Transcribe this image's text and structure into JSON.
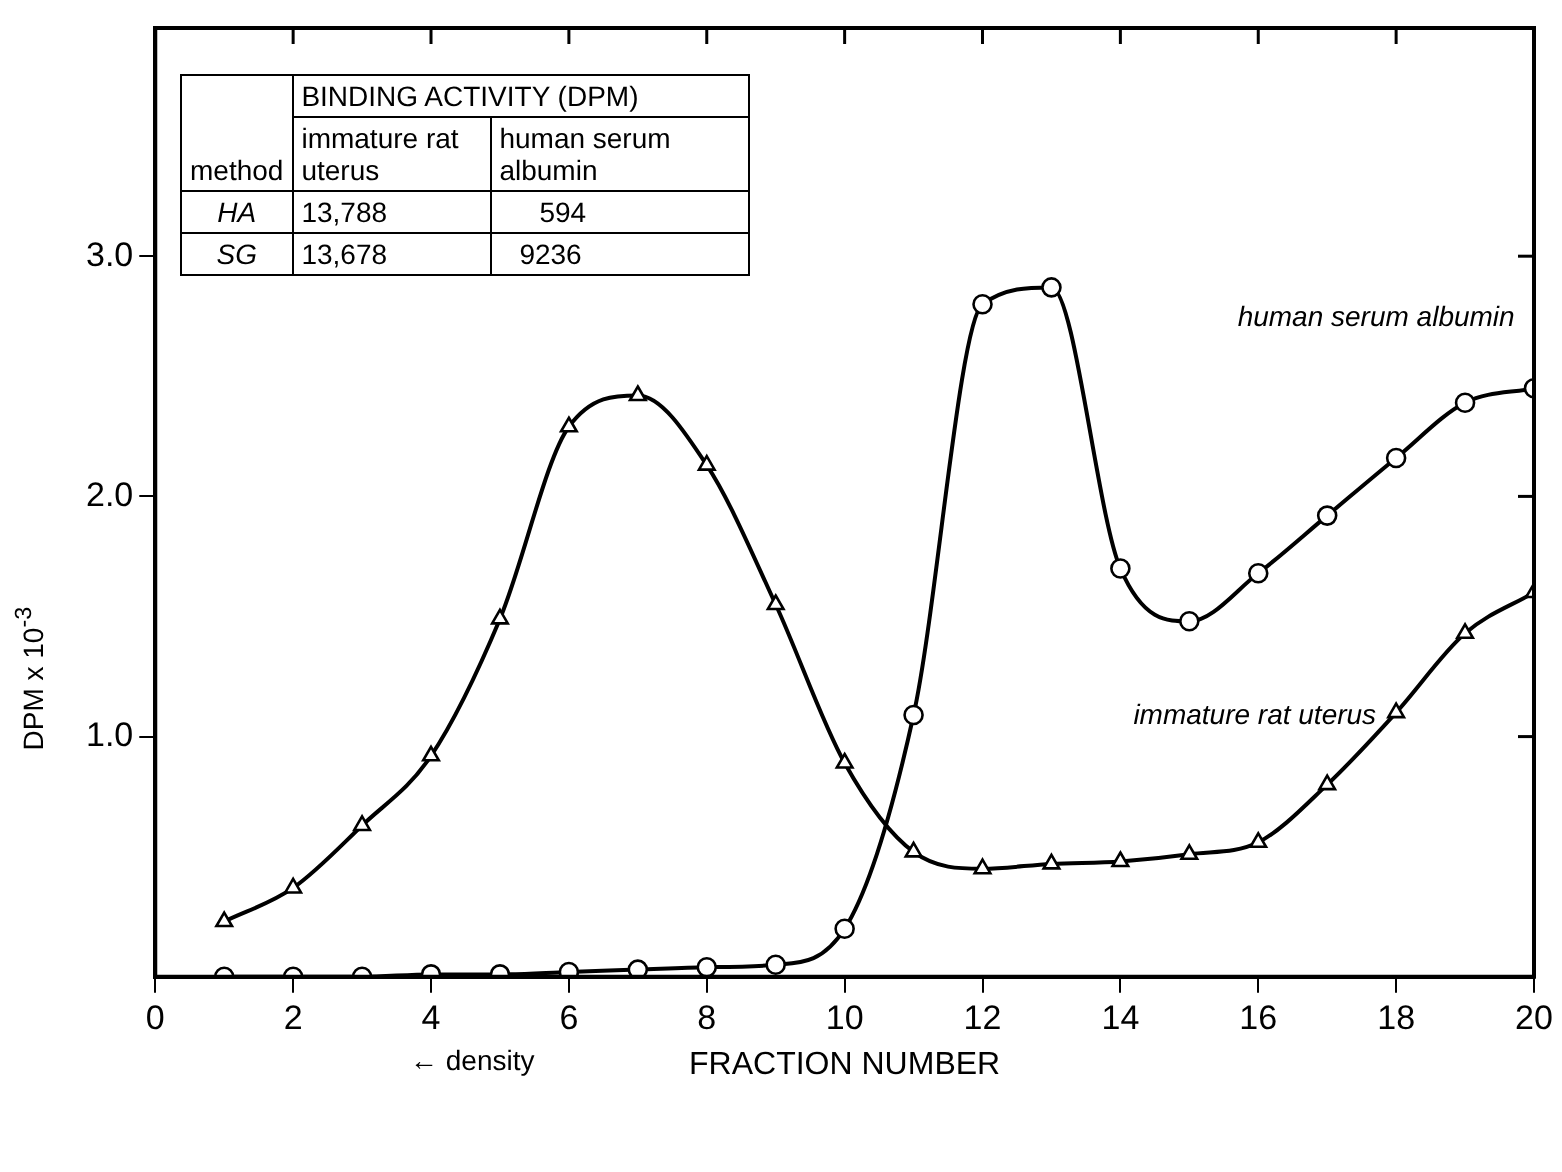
{
  "chart_data": {
    "type": "line",
    "xlabel": "FRACTION NUMBER",
    "ylabel": "DPM x 10$^{-3}$",
    "x": [
      1,
      2,
      3,
      4,
      5,
      6,
      7,
      8,
      9,
      10,
      11,
      12,
      13,
      14,
      15,
      16,
      17,
      18,
      19,
      20
    ],
    "series": [
      {
        "name": "immature rat uterus",
        "color": "#000000",
        "marker": "triangle",
        "values": [
          0.23,
          0.37,
          0.63,
          0.92,
          1.49,
          2.29,
          2.42,
          2.13,
          1.55,
          0.89,
          0.52,
          0.45,
          0.47,
          0.48,
          0.51,
          0.56,
          0.8,
          1.1,
          1.43,
          1.6
        ]
      },
      {
        "name": "human serum albumin",
        "color": "#000000",
        "marker": "circle",
        "values": [
          0.0,
          0.0,
          0.0,
          0.01,
          0.01,
          0.02,
          0.03,
          0.04,
          0.05,
          0.2,
          1.09,
          2.8,
          2.87,
          1.7,
          1.48,
          1.68,
          1.92,
          2.16,
          2.39,
          2.45
        ]
      }
    ],
    "xlim": [
      0,
      20
    ],
    "xticks": [
      0,
      2,
      4,
      6,
      8,
      10,
      12,
      14,
      16,
      18,
      20
    ],
    "ylim": [
      0,
      3.95
    ],
    "yticks": [
      {
        "value": 1,
        "label": "1.0"
      },
      {
        "value": 2,
        "label": "2.0"
      },
      {
        "value": 3,
        "label": "3.0"
      }
    ],
    "grid": false,
    "legend": false,
    "line_style": "solid",
    "annotations": [
      "BINDING ACTIVITY (DPM)",
      "method",
      "immature rat uterus",
      "human serum albumin",
      "HA",
      "13,788",
      "594",
      "SG",
      "13,678",
      "9236",
      "← density"
    ]
  }
}
